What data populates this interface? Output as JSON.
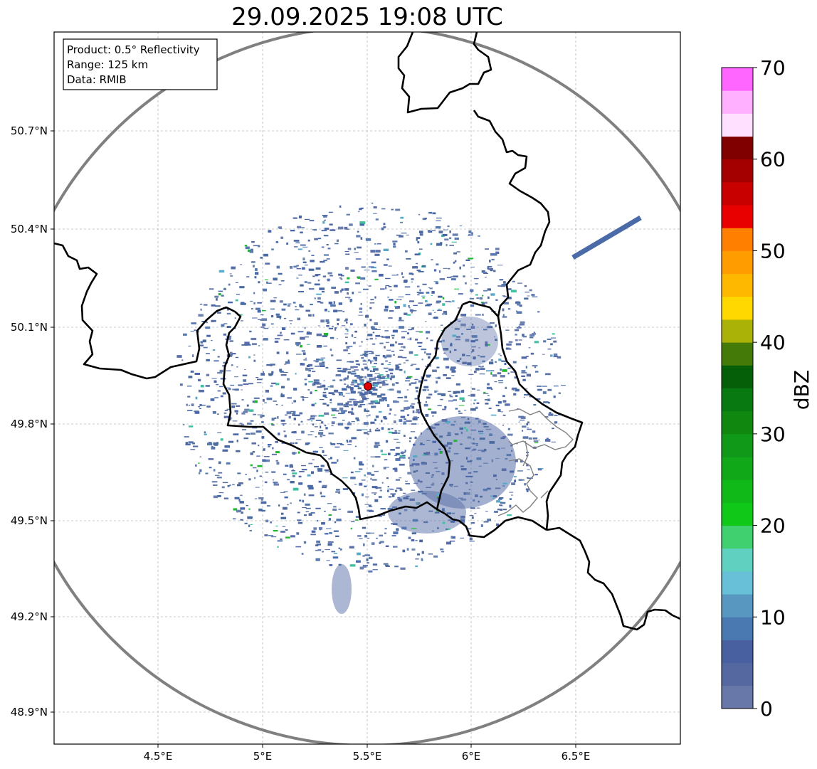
{
  "title": "29.09.2025 19:08 UTC",
  "info_box": {
    "product": "Product: 0.5° Reflectivity",
    "range": "Range: 125 km",
    "data": "Data: RMIB"
  },
  "map": {
    "lon_ticks": [
      "4.5°E",
      "5°E",
      "5.5°E",
      "6°E",
      "6.5°E"
    ],
    "lat_ticks": [
      "50.7°N",
      "50.4°N",
      "50.1°N",
      "49.8°N",
      "49.5°N",
      "49.2°N",
      "48.9°N"
    ],
    "lon_range": [
      4.0,
      7.0
    ],
    "lat_range": [
      48.8,
      51.0
    ],
    "radar_site": {
      "lon": 5.5,
      "lat": 49.91
    },
    "range_ring_km": 125,
    "grid": true,
    "colors": {
      "border": "#000000",
      "admin": "#808080",
      "ring": "#808080",
      "site": "#e00000",
      "grid": "#b0b0b0"
    }
  },
  "colorbar": {
    "label": "dBZ",
    "ticks": [
      "0",
      "10",
      "20",
      "30",
      "40",
      "50",
      "60",
      "70"
    ],
    "range": [
      0,
      70
    ],
    "step": 2.5,
    "colors": [
      "#6878a8",
      "#5568a0",
      "#4860a0",
      "#4a78b0",
      "#5898c0",
      "#68c0d8",
      "#60d0c0",
      "#40d070",
      "#10c818",
      "#10b818",
      "#10a818",
      "#109818",
      "#108810",
      "#087810",
      "#055e08",
      "#447a08",
      "#aab208",
      "#ffd800",
      "#ffb800",
      "#ff9c00",
      "#ff8000",
      "#e80000",
      "#c80000",
      "#a40000",
      "#800000",
      "#ffe0ff",
      "#ffb0ff",
      "#ff66ff",
      "#ee33ee"
    ]
  }
}
